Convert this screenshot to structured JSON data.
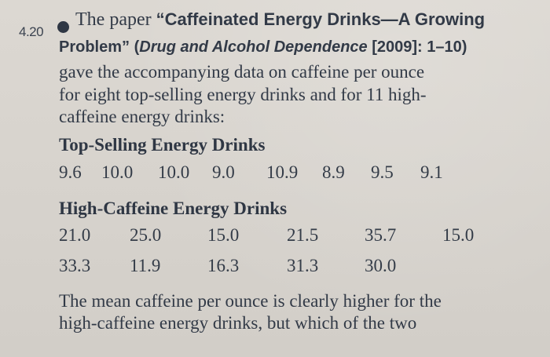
{
  "exercise": {
    "number": "4.20",
    "intro_prefix": "The paper ",
    "paper_title": "“Caffeinated Energy Drinks—A Growing",
    "paper_title_continued": "Problem” (",
    "journal": "Drug and Alcohol Dependence",
    "citation_suffix": " [2009]: 1–10)",
    "intro_line_3": "gave the accompanying data on caffeine per ounce",
    "intro_line_4": "for eight top-selling energy drinks and for 11 high-",
    "intro_line_5": "caffeine energy drinks:"
  },
  "top_selling": {
    "heading": "Top-Selling Energy Drinks",
    "values": [
      "9.6",
      "10.0",
      "10.0",
      "9.0",
      "10.9",
      "8.9",
      "9.5",
      "9.1"
    ]
  },
  "high_caffeine": {
    "heading": "High-Caffeine Energy Drinks",
    "row_1": [
      "21.0",
      "25.0",
      "15.0",
      "21.5",
      "35.7",
      "15.0"
    ],
    "row_2": [
      "33.3",
      "11.9",
      "16.3",
      "31.3",
      "30.0"
    ]
  },
  "closing": {
    "line_1": "The mean caffeine per ounce is clearly higher for the",
    "line_2": "high-caffeine energy drinks, but which of the two"
  }
}
